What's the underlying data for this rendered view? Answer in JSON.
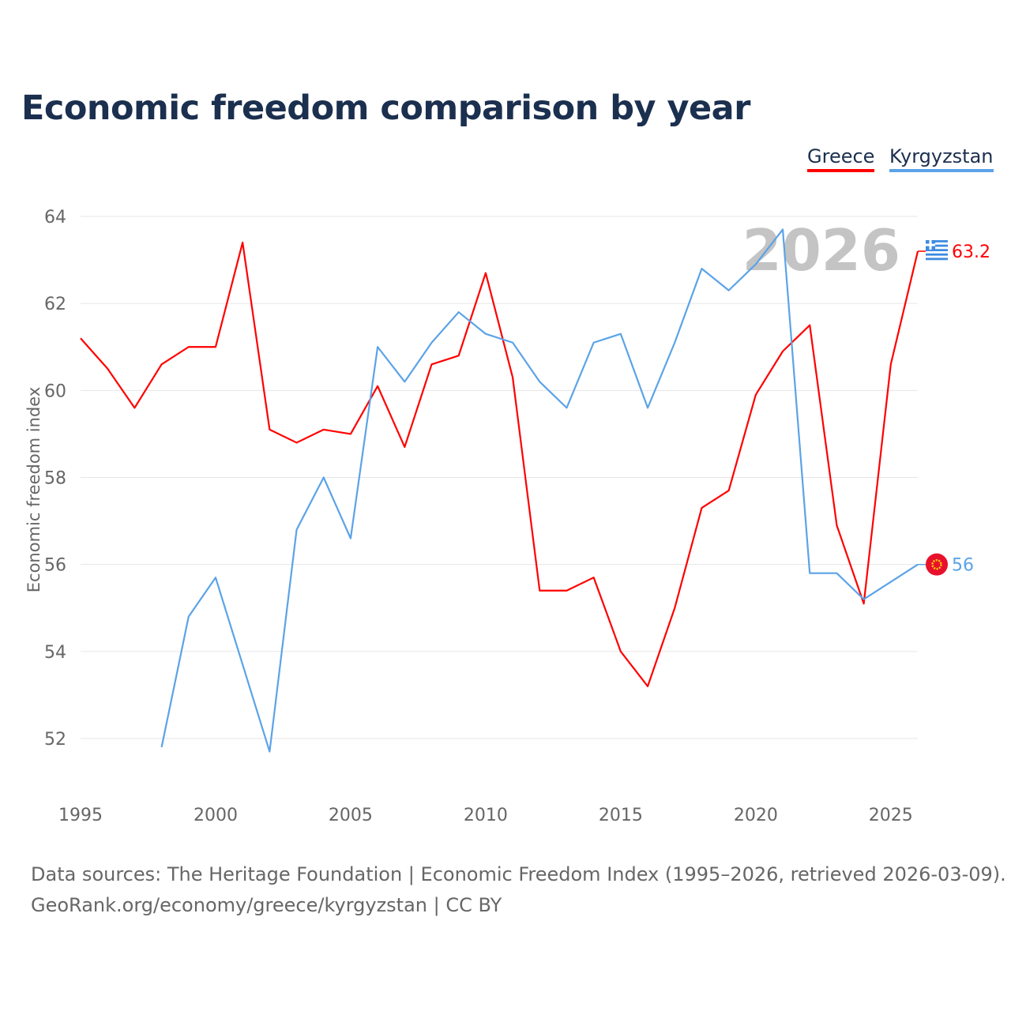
{
  "chart_data": {
    "type": "line",
    "title": "Economic freedom comparison by year",
    "xlabel": "",
    "ylabel": "Economic freedom index",
    "xlim": [
      1995,
      2026
    ],
    "ylim": [
      51,
      64.5
    ],
    "yticks": [
      52,
      54,
      56,
      58,
      60,
      62,
      64
    ],
    "xticks": [
      1995,
      2000,
      2005,
      2010,
      2015,
      2020,
      2025
    ],
    "grid": true,
    "legend_position": "top-right",
    "watermark_year": "2026",
    "series": [
      {
        "name": "Greece",
        "color": "#ff0000",
        "end_label": "63.2",
        "flag": "greece-flag-icon",
        "x": [
          1995,
          1996,
          1997,
          1998,
          1999,
          2000,
          2001,
          2002,
          2003,
          2004,
          2005,
          2006,
          2007,
          2008,
          2009,
          2010,
          2011,
          2012,
          2013,
          2014,
          2015,
          2016,
          2017,
          2018,
          2019,
          2020,
          2021,
          2022,
          2023,
          2024,
          2025,
          2026
        ],
        "y": [
          61.2,
          60.5,
          59.6,
          60.6,
          61.0,
          61.0,
          63.4,
          59.1,
          58.8,
          59.1,
          59.0,
          60.1,
          58.7,
          60.6,
          60.8,
          62.7,
          60.3,
          55.4,
          55.4,
          55.7,
          54.0,
          53.2,
          55.0,
          57.3,
          57.7,
          59.9,
          60.9,
          61.5,
          56.9,
          55.1,
          60.6,
          63.2
        ]
      },
      {
        "name": "Kyrgyzstan",
        "color": "#5ba3e8",
        "end_label": "56",
        "flag": "kyrgyzstan-flag-icon",
        "x": [
          1998,
          1999,
          2000,
          2001,
          2002,
          2003,
          2004,
          2005,
          2006,
          2007,
          2008,
          2009,
          2010,
          2011,
          2012,
          2013,
          2014,
          2015,
          2016,
          2017,
          2018,
          2019,
          2020,
          2021,
          2022,
          2023,
          2024,
          2025,
          2026
        ],
        "y": [
          51.8,
          54.8,
          55.7,
          53.7,
          51.7,
          56.8,
          58.0,
          56.6,
          61.0,
          60.2,
          61.1,
          61.8,
          61.3,
          61.1,
          60.2,
          59.6,
          61.1,
          61.3,
          59.6,
          61.1,
          62.8,
          62.3,
          62.9,
          63.7,
          55.8,
          55.8,
          55.2,
          55.6,
          56.0
        ]
      }
    ]
  },
  "footer": {
    "line1": "Data sources: The Heritage Foundation | Economic Freedom Index (1995–2026, retrieved 2026-03-09).",
    "line2": "GeoRank.org/economy/greece/kyrgyzstan | CC BY"
  }
}
